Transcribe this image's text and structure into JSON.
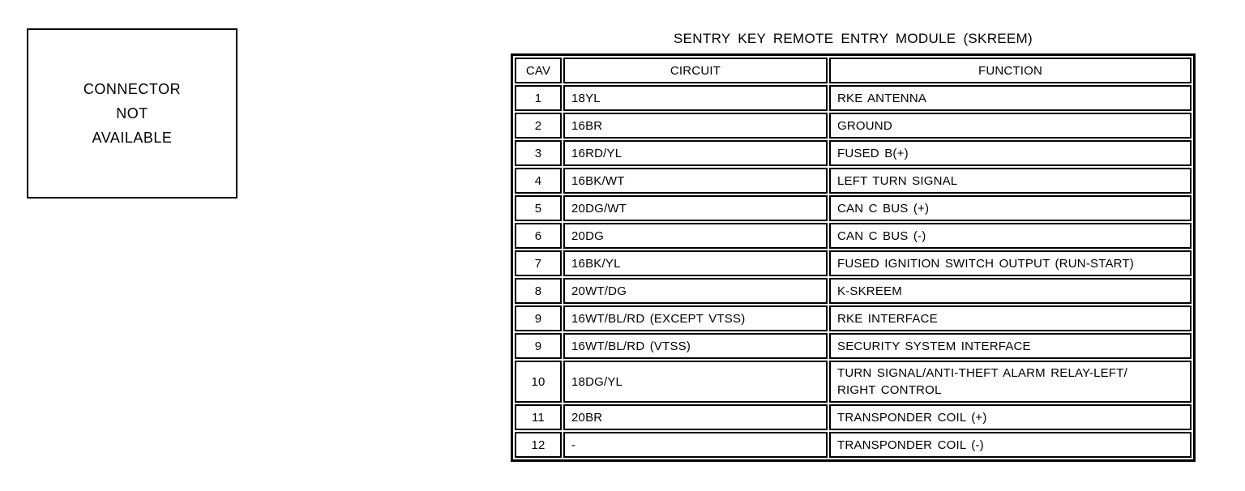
{
  "connector_box": {
    "lines": [
      "CONNECTOR",
      "NOT",
      "AVAILABLE"
    ]
  },
  "pinout_table": {
    "title": "SENTRY KEY REMOTE ENTRY MODULE (SKREEM)",
    "headers": {
      "cav": "CAV",
      "circuit": "CIRCUIT",
      "function": "FUNCTION"
    },
    "rows": [
      {
        "cav": "1",
        "circuit": "18YL",
        "function": "RKE ANTENNA"
      },
      {
        "cav": "2",
        "circuit": "16BR",
        "function": "GROUND"
      },
      {
        "cav": "3",
        "circuit": "16RD/YL",
        "function": "FUSED B(+)"
      },
      {
        "cav": "4",
        "circuit": "16BK/WT",
        "function": "LEFT TURN SIGNAL"
      },
      {
        "cav": "5",
        "circuit": "20DG/WT",
        "function": "CAN C BUS (+)"
      },
      {
        "cav": "6",
        "circuit": "20DG",
        "function": "CAN C BUS (-)"
      },
      {
        "cav": "7",
        "circuit": "16BK/YL",
        "function": "FUSED IGNITION SWITCH OUTPUT (RUN-START)"
      },
      {
        "cav": "8",
        "circuit": "20WT/DG",
        "function": "K-SKREEM"
      },
      {
        "cav": "9",
        "circuit": "16WT/BL/RD (EXCEPT VTSS)",
        "function": "RKE INTERFACE"
      },
      {
        "cav": "9",
        "circuit": "16WT/BL/RD (VTSS)",
        "function": "SECURITY SYSTEM INTERFACE"
      },
      {
        "cav": "10",
        "circuit": "18DG/YL",
        "function": "TURN SIGNAL/ANTI-THEFT ALARM RELAY-LEFT/\nRIGHT CONTROL"
      },
      {
        "cav": "11",
        "circuit": "20BR",
        "function": "TRANSPONDER COIL (+)"
      },
      {
        "cav": "12",
        "circuit": "-",
        "function": "TRANSPONDER COIL (-)"
      }
    ]
  },
  "colors": {
    "ink": "#000000",
    "paper": "#ffffff"
  }
}
